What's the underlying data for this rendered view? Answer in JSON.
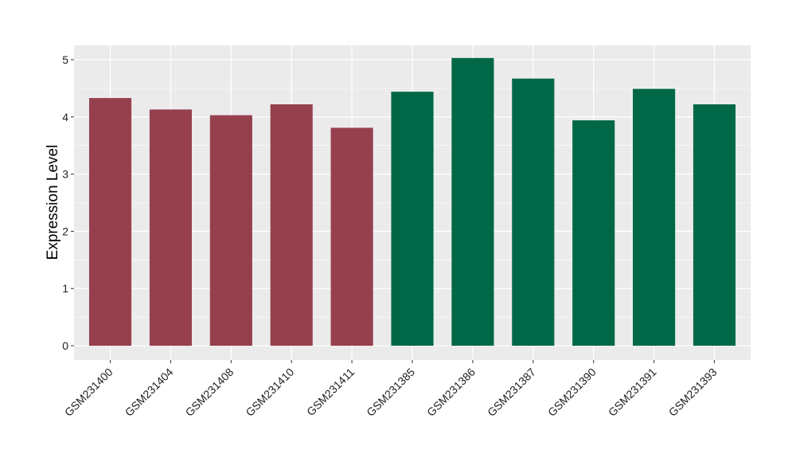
{
  "chart_data": {
    "type": "bar",
    "title": "",
    "xlabel": "",
    "ylabel": "Expression Level",
    "ylim": [
      -0.25,
      5.25
    ],
    "yticks": [
      0,
      1,
      2,
      3,
      4,
      5
    ],
    "ytick_labels": [
      "0",
      "1",
      "2",
      "3",
      "4",
      "5"
    ],
    "grid": true,
    "legend": "none",
    "categories": [
      "GSM231400",
      "GSM231404",
      "GSM231408",
      "GSM231410",
      "GSM231411",
      "GSM231385",
      "GSM231386",
      "GSM231387",
      "GSM231390",
      "GSM231391",
      "GSM231393"
    ],
    "values": [
      4.33,
      4.13,
      4.03,
      4.22,
      3.81,
      4.44,
      5.03,
      4.67,
      3.94,
      4.49,
      4.22
    ],
    "bar_colors": [
      "#96404e",
      "#96404e",
      "#96404e",
      "#96404e",
      "#96404e",
      "#006847",
      "#006847",
      "#006847",
      "#006847",
      "#006847",
      "#006847"
    ],
    "panel_background": "#ebebeb",
    "grid_color": "#ffffff"
  }
}
